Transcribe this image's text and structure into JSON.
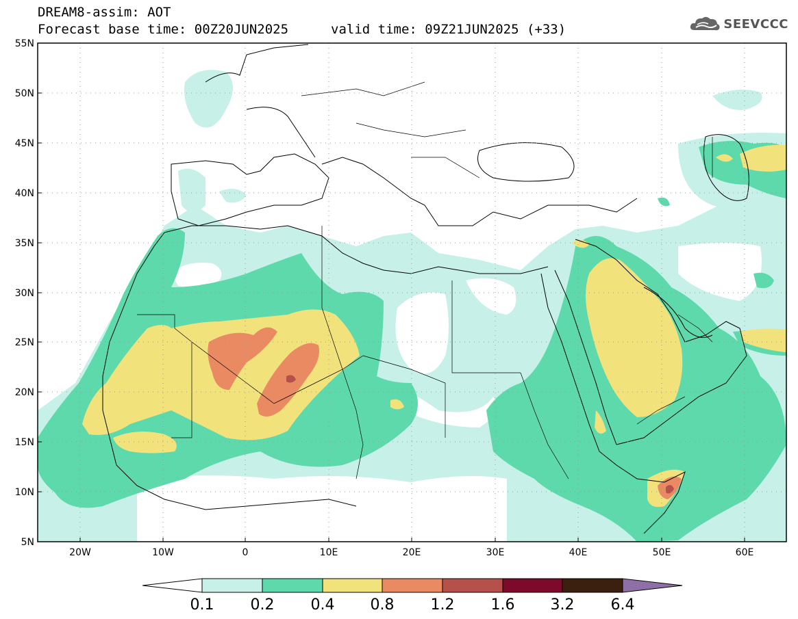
{
  "header": {
    "title": "DREAM8-assim: AOT",
    "base_time": "Forecast base time: 00Z20JUN2025",
    "valid_time": "valid time: 09Z21JUN2025 (+33)",
    "logo_text": "SEEVCCC",
    "logo_icon": "cloud-icon"
  },
  "map": {
    "lat_labels": [
      "55N",
      "50N",
      "45N",
      "40N",
      "35N",
      "30N",
      "25N",
      "20N",
      "15N",
      "10N",
      "5N"
    ],
    "lon_labels": [
      "20W",
      "10W",
      "0",
      "10E",
      "20E",
      "30E",
      "40E",
      "50E",
      "60E"
    ],
    "lat_range": [
      5,
      55
    ],
    "lon_range": [
      -25,
      65
    ],
    "grid": "dotted"
  },
  "colorbar": {
    "labels": [
      "0.1",
      "0.2",
      "0.4",
      "0.8",
      "1.2",
      "1.6",
      "3.2",
      "6.4"
    ],
    "colors": [
      "#ffffff",
      "#c6f0e8",
      "#5dd9ac",
      "#f2e27c",
      "#e98a62",
      "#b5504a",
      "#7d0a2b",
      "#3b2010",
      "#8e6fa6"
    ]
  }
}
